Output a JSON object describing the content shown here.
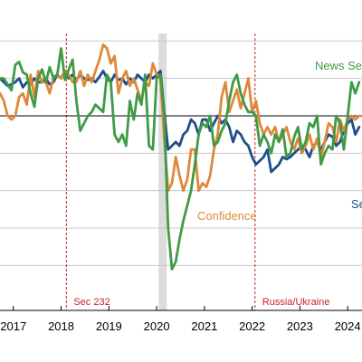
{
  "chart_data": {
    "type": "line",
    "title": "",
    "xlabel": "",
    "ylabel": "",
    "xlim": [
      2016.72,
      2024.3
    ],
    "ylim": [
      -0.6,
      3.1
    ],
    "x_ticks": [
      2017,
      2018,
      2019,
      2020,
      2021,
      2022,
      2023,
      2024
    ],
    "x_tick_labels": [
      "2017",
      "2018",
      "2019",
      "2020",
      "2021",
      "2022",
      "2023",
      "2024"
    ],
    "y_gridlines": [
      0,
      0.5,
      1,
      1.5,
      2,
      2.5,
      3
    ],
    "reference_line_y": 2,
    "shaded_period": {
      "start": 2020.04,
      "end": 2020.21
    },
    "events": [
      {
        "x": 2018.11,
        "label": "Sec 232",
        "color": "#cc2222"
      },
      {
        "x": 2022.06,
        "label": "Russia/Ukraine",
        "color": "#cc2222"
      }
    ],
    "series": [
      {
        "name": "News Sentiment",
        "color": "#3f9b45",
        "label_text": "News Se",
        "x": [
          2016.72,
          2016.8,
          2016.88,
          2016.96,
          2017.04,
          2017.12,
          2017.2,
          2017.28,
          2017.36,
          2017.44,
          2017.52,
          2017.6,
          2017.68,
          2017.76,
          2017.84,
          2017.92,
          2018.0,
          2018.08,
          2018.16,
          2018.24,
          2018.32,
          2018.4,
          2018.48,
          2018.56,
          2018.64,
          2018.72,
          2018.8,
          2018.88,
          2018.96,
          2019.04,
          2019.12,
          2019.2,
          2019.28,
          2019.36,
          2019.44,
          2019.52,
          2019.6,
          2019.68,
          2019.76,
          2019.84,
          2019.92,
          2020.0,
          2020.08,
          2020.16,
          2020.24,
          2020.32,
          2020.4,
          2020.48,
          2020.56,
          2020.64,
          2020.72,
          2020.8,
          2020.88,
          2020.96,
          2021.04,
          2021.12,
          2021.2,
          2021.28,
          2021.36,
          2021.44,
          2021.52,
          2021.6,
          2021.68,
          2021.76,
          2021.84,
          2021.92,
          2022.0,
          2022.08,
          2022.16,
          2022.24,
          2022.32,
          2022.4,
          2022.48,
          2022.56,
          2022.64,
          2022.72,
          2022.8,
          2022.88,
          2022.96,
          2023.04,
          2023.12,
          2023.2,
          2023.28,
          2023.36,
          2023.44,
          2023.52,
          2023.6,
          2023.68,
          2023.76,
          2023.84,
          2023.92,
          2024.0,
          2024.08,
          2024.16,
          2024.24
        ],
        "values": [
          2.5,
          2.5,
          2.42,
          2.34,
          2.68,
          2.72,
          2.58,
          2.55,
          2.3,
          2.12,
          2.5,
          2.62,
          2.45,
          2.65,
          2.5,
          2.55,
          2.9,
          2.48,
          2.62,
          2.75,
          2.2,
          1.8,
          1.9,
          2.0,
          2.05,
          2.15,
          2.1,
          2.05,
          2.55,
          2.45,
          1.75,
          1.65,
          1.75,
          1.6,
          2.2,
          1.95,
          2.3,
          2.15,
          2.55,
          1.6,
          1.55,
          2.5,
          2.55,
          2.0,
          0.5,
          -0.05,
          0.05,
          0.35,
          0.6,
          0.8,
          1.0,
          1.35,
          1.75,
          1.9,
          1.85,
          2.0,
          1.6,
          1.65,
          1.8,
          1.9,
          2.2,
          2.45,
          2.55,
          2.3,
          2.15,
          2.05,
          2.05,
          2.0,
          1.6,
          1.75,
          1.65,
          1.5,
          1.75,
          1.65,
          1.82,
          1.45,
          1.5,
          1.72,
          1.85,
          1.55,
          1.65,
          1.9,
          1.85,
          2.0,
          1.35,
          1.5,
          1.6,
          1.55,
          2.0,
          1.9,
          1.55,
          2.0,
          2.45,
          2.3,
          2.45
        ]
      },
      {
        "name": "Confidence",
        "color": "#e0883a",
        "label_text": "Confidence",
        "x": [
          2016.72,
          2016.8,
          2016.88,
          2016.96,
          2017.04,
          2017.12,
          2017.2,
          2017.28,
          2017.36,
          2017.44,
          2017.52,
          2017.6,
          2017.68,
          2017.76,
          2017.84,
          2017.92,
          2018.0,
          2018.08,
          2018.16,
          2018.24,
          2018.32,
          2018.4,
          2018.48,
          2018.56,
          2018.64,
          2018.72,
          2018.8,
          2018.88,
          2018.96,
          2019.04,
          2019.12,
          2019.2,
          2019.28,
          2019.36,
          2019.44,
          2019.52,
          2019.6,
          2019.68,
          2019.76,
          2019.84,
          2019.92,
          2020.0,
          2020.08,
          2020.16,
          2020.24,
          2020.32,
          2020.4,
          2020.48,
          2020.56,
          2020.64,
          2020.72,
          2020.8,
          2020.88,
          2020.96,
          2021.04,
          2021.12,
          2021.2,
          2021.28,
          2021.36,
          2021.44,
          2021.52,
          2021.6,
          2021.68,
          2021.76,
          2021.84,
          2021.92,
          2022.0,
          2022.08,
          2022.16,
          2022.24,
          2022.32,
          2022.4,
          2022.48,
          2022.56,
          2022.64,
          2022.72,
          2022.8,
          2022.88,
          2022.96,
          2023.04,
          2023.12,
          2023.2,
          2023.28,
          2023.36,
          2023.44,
          2023.52,
          2023.6,
          2023.68,
          2023.76,
          2023.84,
          2023.92,
          2024.0,
          2024.08,
          2024.16,
          2024.24
        ],
        "values": [
          2.3,
          2.2,
          2.0,
          1.95,
          2.0,
          2.25,
          2.3,
          2.15,
          2.55,
          2.25,
          2.6,
          2.45,
          2.45,
          2.3,
          2.52,
          2.55,
          2.5,
          2.6,
          2.55,
          2.45,
          2.45,
          2.6,
          2.4,
          2.55,
          2.45,
          2.6,
          2.75,
          2.95,
          2.9,
          2.7,
          2.8,
          2.3,
          2.5,
          2.6,
          2.4,
          2.5,
          2.35,
          2.2,
          2.45,
          2.4,
          2.7,
          2.55,
          2.5,
          1.7,
          1.0,
          1.1,
          1.45,
          1.2,
          1.0,
          1.15,
          1.55,
          1.55,
          1.0,
          1.1,
          1.05,
          1.2,
          1.55,
          1.75,
          2.25,
          2.45,
          2.05,
          2.2,
          2.35,
          2.1,
          2.3,
          2.5,
          2.05,
          2.2,
          1.9,
          1.75,
          1.85,
          1.75,
          1.85,
          1.65,
          1.75,
          1.85,
          1.65,
          1.55,
          1.7,
          1.5,
          1.6,
          1.75,
          1.55,
          1.7,
          1.45,
          1.65,
          1.9,
          1.85,
          1.65,
          1.95,
          1.8,
          1.95,
          2.0,
          1.95,
          2.0
        ]
      },
      {
        "name": "Sentiment",
        "color": "#1f4e8c",
        "label_text": "Se",
        "x": [
          2016.72,
          2016.8,
          2016.88,
          2016.96,
          2017.04,
          2017.12,
          2017.2,
          2017.28,
          2017.36,
          2017.44,
          2017.52,
          2017.6,
          2017.68,
          2017.76,
          2017.84,
          2017.92,
          2018.0,
          2018.08,
          2018.16,
          2018.24,
          2018.32,
          2018.4,
          2018.48,
          2018.56,
          2018.64,
          2018.72,
          2018.8,
          2018.88,
          2018.96,
          2019.04,
          2019.12,
          2019.2,
          2019.28,
          2019.36,
          2019.44,
          2019.52,
          2019.6,
          2019.68,
          2019.76,
          2019.84,
          2019.92,
          2020.0,
          2020.08,
          2020.16,
          2020.24,
          2020.32,
          2020.4,
          2020.48,
          2020.56,
          2020.64,
          2020.72,
          2020.8,
          2020.88,
          2020.96,
          2021.04,
          2021.12,
          2021.2,
          2021.28,
          2021.36,
          2021.44,
          2021.52,
          2021.6,
          2021.68,
          2021.76,
          2021.84,
          2021.92,
          2022.0,
          2022.08,
          2022.16,
          2022.24,
          2022.32,
          2022.4,
          2022.48,
          2022.56,
          2022.64,
          2022.72,
          2022.8,
          2022.88,
          2022.96,
          2023.04,
          2023.12,
          2023.2,
          2023.28,
          2023.36,
          2023.44,
          2023.52,
          2023.6,
          2023.68,
          2023.76,
          2023.84,
          2023.92,
          2024.0,
          2024.08,
          2024.16,
          2024.24
        ],
        "values": [
          2.5,
          2.45,
          2.4,
          2.42,
          2.45,
          2.5,
          2.38,
          2.45,
          2.42,
          2.5,
          2.45,
          2.45,
          2.5,
          2.42,
          2.45,
          2.55,
          2.5,
          2.6,
          2.5,
          2.55,
          2.48,
          2.55,
          2.5,
          2.48,
          2.5,
          2.45,
          2.52,
          2.6,
          2.5,
          2.45,
          2.55,
          2.48,
          2.5,
          2.42,
          2.5,
          2.45,
          2.55,
          2.5,
          2.45,
          2.55,
          2.5,
          2.55,
          2.6,
          2.05,
          1.55,
          1.6,
          1.65,
          1.6,
          1.75,
          1.8,
          1.95,
          1.9,
          1.75,
          1.95,
          1.95,
          1.8,
          1.9,
          2.0,
          1.9,
          1.95,
          1.85,
          1.65,
          1.8,
          1.75,
          1.65,
          1.6,
          1.45,
          1.35,
          1.4,
          1.45,
          1.55,
          1.25,
          1.3,
          1.35,
          1.45,
          1.42,
          1.45,
          1.5,
          1.55,
          1.6,
          1.55,
          1.45,
          1.6,
          1.65,
          1.55,
          1.65,
          1.75,
          1.72,
          1.6,
          1.65,
          1.8,
          1.9,
          1.95,
          1.75,
          1.85
        ]
      }
    ]
  }
}
